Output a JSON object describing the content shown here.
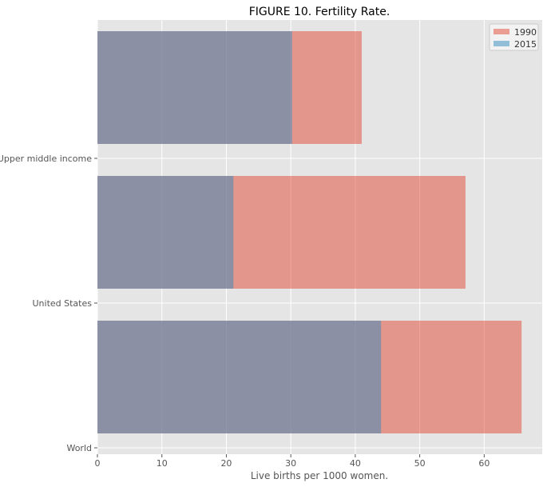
{
  "chart_data": {
    "type": "bar",
    "orientation": "horizontal",
    "title": "FIGURE 10. Fertility Rate.",
    "xlabel": "Live births per 1000 women.",
    "ylabel": "",
    "categories": [
      "World",
      "United States",
      "Upper middle income"
    ],
    "tick_labels": [
      "World",
      "United States",
      "Upper middle income"
    ],
    "series": [
      {
        "name": "1990",
        "values": [
          65.8,
          57.1,
          41.0
        ],
        "color": "#E24A33",
        "alpha": 0.5
      },
      {
        "name": "2015",
        "values": [
          44.0,
          21.1,
          30.2
        ],
        "color": "#348ABD",
        "alpha": 0.5
      }
    ],
    "xlim": [
      0,
      69
    ],
    "xticks": [
      0,
      10,
      20,
      30,
      40,
      50,
      60
    ],
    "grid": true,
    "legend_position": "top-right",
    "style": "ggplot",
    "background": "#E5E5E5"
  }
}
